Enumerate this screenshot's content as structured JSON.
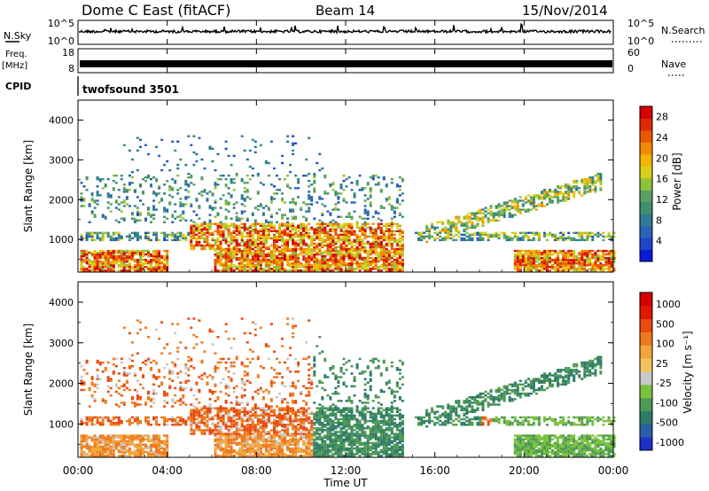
{
  "header": {
    "station": "Dome C East (fitACF)",
    "beam": "Beam 14",
    "date": "15/Nov/2014"
  },
  "top_panels": {
    "nsky_label": "N.Sky",
    "nsky_ticks": [
      "10^5",
      "10^0"
    ],
    "nsearch_label": "N.Search",
    "nsearch_ticks": [
      "10^5",
      "10^0"
    ],
    "freq_label_1": "Freq.",
    "freq_label_2": "[MHz]",
    "freq_ticks": [
      "18",
      "8"
    ],
    "nave_label": "Nave",
    "nave_ticks": [
      "60",
      "0"
    ],
    "cpid_label": "CPID",
    "cpid_value": "twofsound 3501"
  },
  "chart_data": [
    {
      "type": "heatmap",
      "title": "",
      "ylabel": "Slant Range [km]",
      "xlabel": "",
      "x_ticks": [
        "00:00",
        "04:00",
        "08:00",
        "12:00",
        "16:00",
        "20:00",
        "00:00"
      ],
      "y_ticks": [
        "1000",
        "2000",
        "3000",
        "4000"
      ],
      "ylim": [
        180,
        4500
      ],
      "colorbar": {
        "label": "Power [dB]",
        "ticks": [
          "4",
          "8",
          "12",
          "16",
          "20",
          "24",
          "28"
        ],
        "range": [
          0,
          30
        ],
        "colors": [
          "#0a1ad8",
          "#1e46c8",
          "#2a63b8",
          "#2f7c92",
          "#3f8f6e",
          "#5aa060",
          "#8ec23c",
          "#d6d21a",
          "#f3b500",
          "#f08a00",
          "#ea5800",
          "#e02800",
          "#d40000"
        ]
      }
    },
    {
      "type": "heatmap",
      "title": "",
      "ylabel": "Slant Range [km]",
      "xlabel": "Time UT",
      "x_ticks": [
        "00:00",
        "04:00",
        "08:00",
        "12:00",
        "16:00",
        "20:00",
        "00:00"
      ],
      "y_ticks": [
        "1000",
        "2000",
        "3000",
        "4000"
      ],
      "ylim": [
        180,
        4500
      ],
      "colorbar": {
        "label": "Velocity [m s⁻¹]",
        "ticks": [
          "1000",
          "500",
          "100",
          "25",
          "-25",
          "-100",
          "-500",
          "-1000"
        ],
        "colors": [
          "#1c2fc6",
          "#2c5ea6",
          "#2f7c6a",
          "#4f9a52",
          "#79c23e",
          "#c8c8c8",
          "#f4c25a",
          "#f2a43a",
          "#ef7a1e",
          "#e84a10",
          "#e01a00",
          "#d40000"
        ]
      }
    }
  ],
  "colors": {
    "power_low": "#0a1ad8",
    "power_high": "#d40000",
    "velocity_away": "#2c5ea6",
    "velocity_toward": "#ef7a1e",
    "ground_scatter": "#c8c8c8"
  }
}
